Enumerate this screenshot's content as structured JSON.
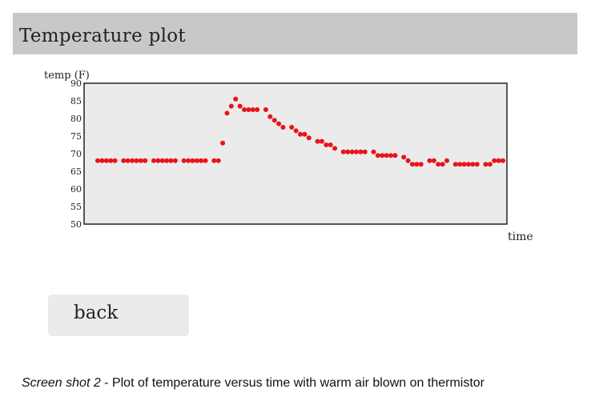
{
  "page": {
    "title": "Temperature plot",
    "back_label": "back",
    "caption_prefix": "Screen shot 2",
    "caption_text": " - Plot of temperature versus time with warm air blown on thermistor"
  },
  "chart_data": {
    "type": "scatter",
    "ylabel": "temp (F)",
    "xlabel": "time",
    "ylim": [
      50,
      90
    ],
    "yticks": [
      90,
      85,
      80,
      75,
      70,
      65,
      60,
      55,
      50
    ],
    "x_ticks_shown": false,
    "grid": false,
    "background_color": "#ebebeb",
    "point_color": "#e8141a",
    "series": [
      {
        "values": [
          68,
          68,
          68,
          68,
          68,
          null,
          68,
          68,
          68,
          68,
          68,
          68,
          null,
          68,
          68,
          68,
          68,
          68,
          68,
          null,
          68,
          68,
          68,
          68,
          68,
          68,
          null,
          68,
          68,
          73,
          81.5,
          83.5,
          85.5,
          83.5,
          82.5,
          82.5,
          82.5,
          82.5,
          null,
          82.5,
          80.5,
          79.5,
          78.5,
          77.5,
          null,
          77.5,
          76.5,
          75.5,
          75.5,
          74.5,
          null,
          73.5,
          73.5,
          72.5,
          72.5,
          71.5,
          null,
          70.5,
          70.5,
          70.5,
          70.5,
          70.5,
          70.5,
          null,
          70.5,
          69.5,
          69.5,
          69.5,
          69.5,
          69.5,
          null,
          69,
          68,
          67,
          67,
          67,
          null,
          68,
          68,
          67,
          67,
          68,
          null,
          67,
          67,
          67,
          67,
          67,
          67,
          null,
          67,
          67,
          68,
          68,
          68
        ]
      }
    ]
  }
}
